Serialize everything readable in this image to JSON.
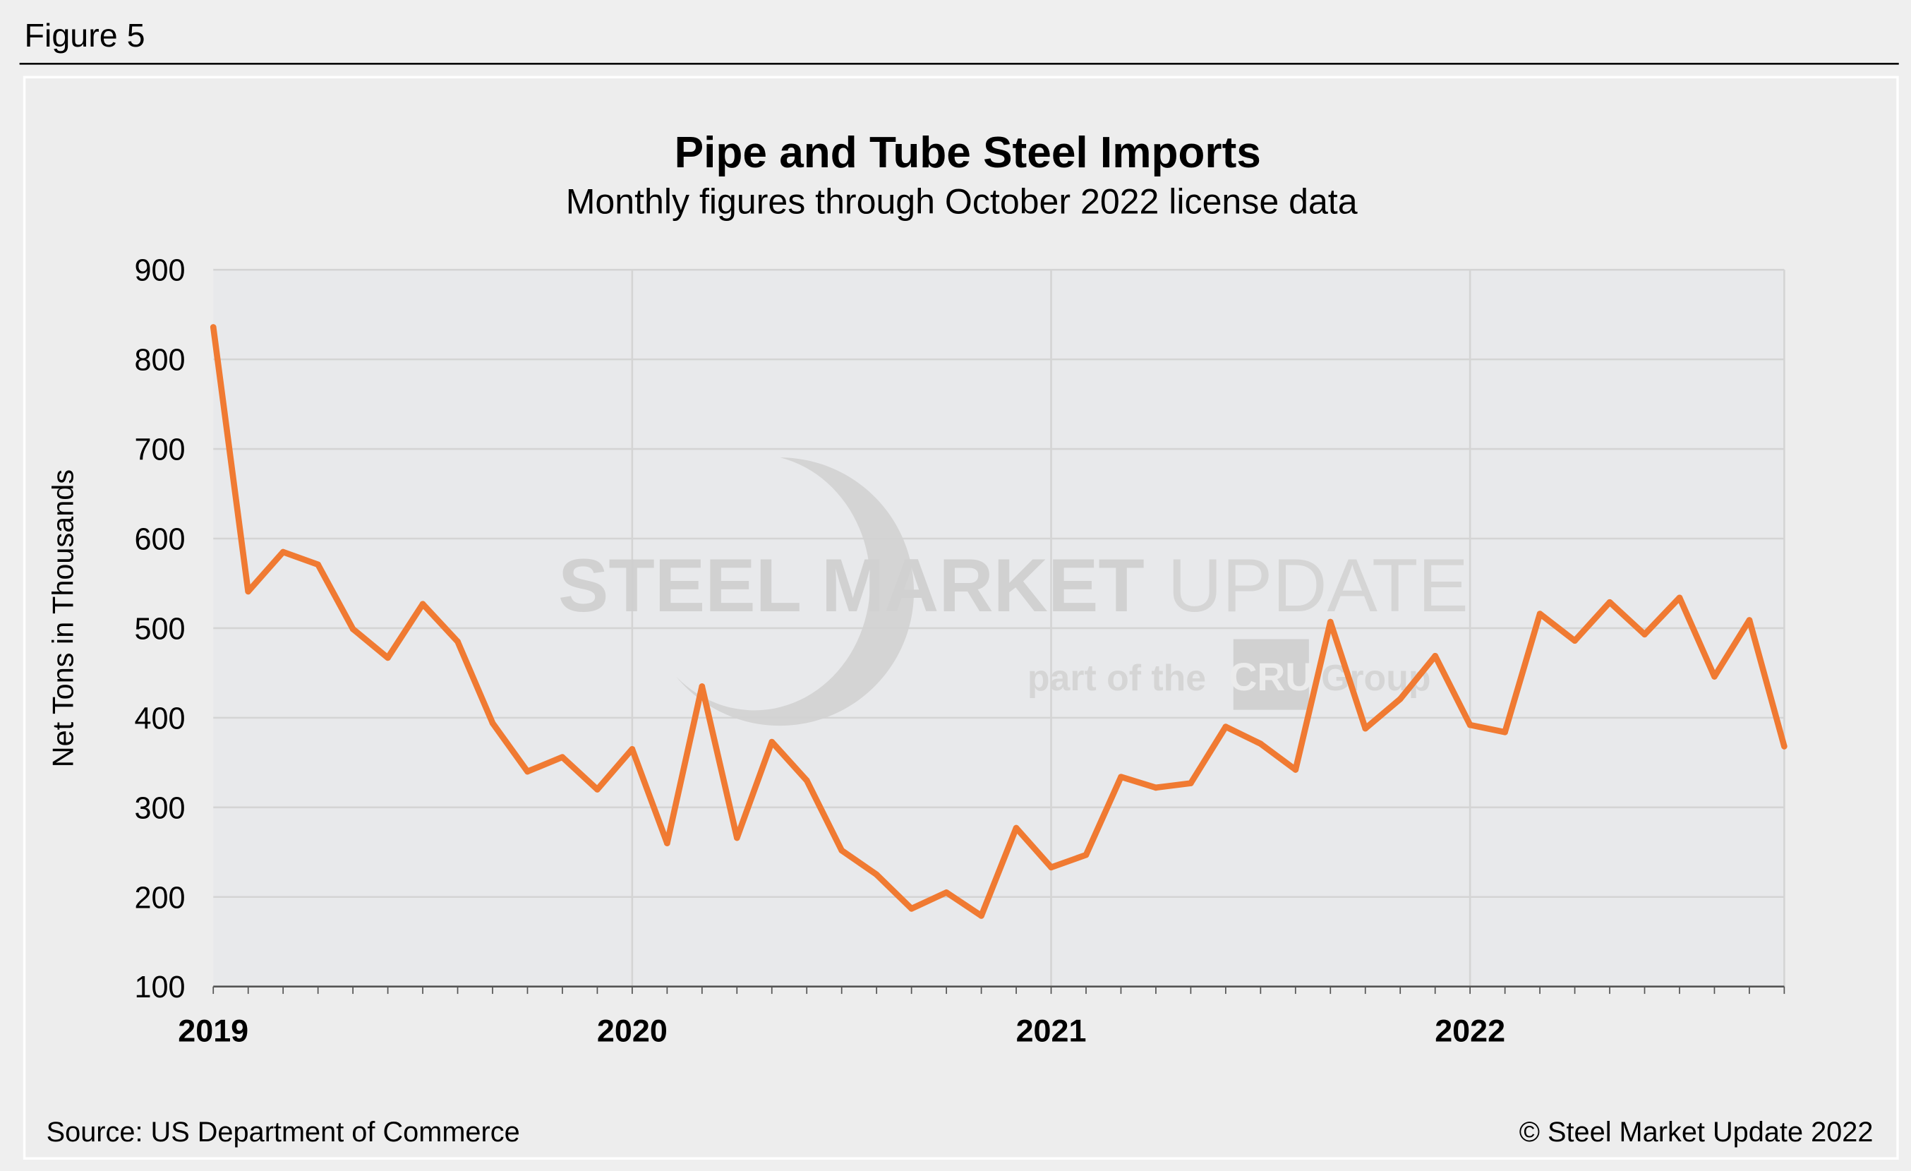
{
  "figure_label": "Figure 5",
  "source": "Source: US Department of Commerce",
  "copyright": "© Steel Market Update 2022",
  "watermark": {
    "line1_bold": "STEEL MARKET",
    "line1_light": "UPDATE",
    "line2_pre": "part of the",
    "line2_logo": "CRU",
    "line2_post": "Group"
  },
  "colors": {
    "line": "#f07a32",
    "plot_bg": "#e8e9eb",
    "grid": "#d4d4d4",
    "page_bg": "#efefef"
  },
  "chart_data": {
    "type": "line",
    "title": "Pipe and Tube Steel Imports",
    "subtitle": "Monthly figures through October 2022 license data",
    "ylabel": "Net Tons in Thousands",
    "xlabel": "",
    "ylim": [
      100,
      900
    ],
    "yticks": [
      "100",
      "200",
      "300",
      "400",
      "500",
      "600",
      "700",
      "800",
      "900"
    ],
    "xticks": [
      "2019",
      "2020",
      "2021",
      "2022"
    ],
    "grid": true,
    "x_start": "2019-01",
    "x_end": "2022-10",
    "values": [
      836,
      541,
      585,
      571,
      499,
      467,
      527,
      485,
      394,
      340,
      356,
      320,
      365,
      260,
      435,
      266,
      373,
      330,
      252,
      225,
      187,
      205,
      179,
      277,
      233,
      247,
      334,
      322,
      327,
      390,
      371,
      342,
      507,
      388,
      421,
      469,
      392,
      384,
      516,
      486,
      529,
      493,
      534,
      446,
      509,
      368
    ]
  }
}
